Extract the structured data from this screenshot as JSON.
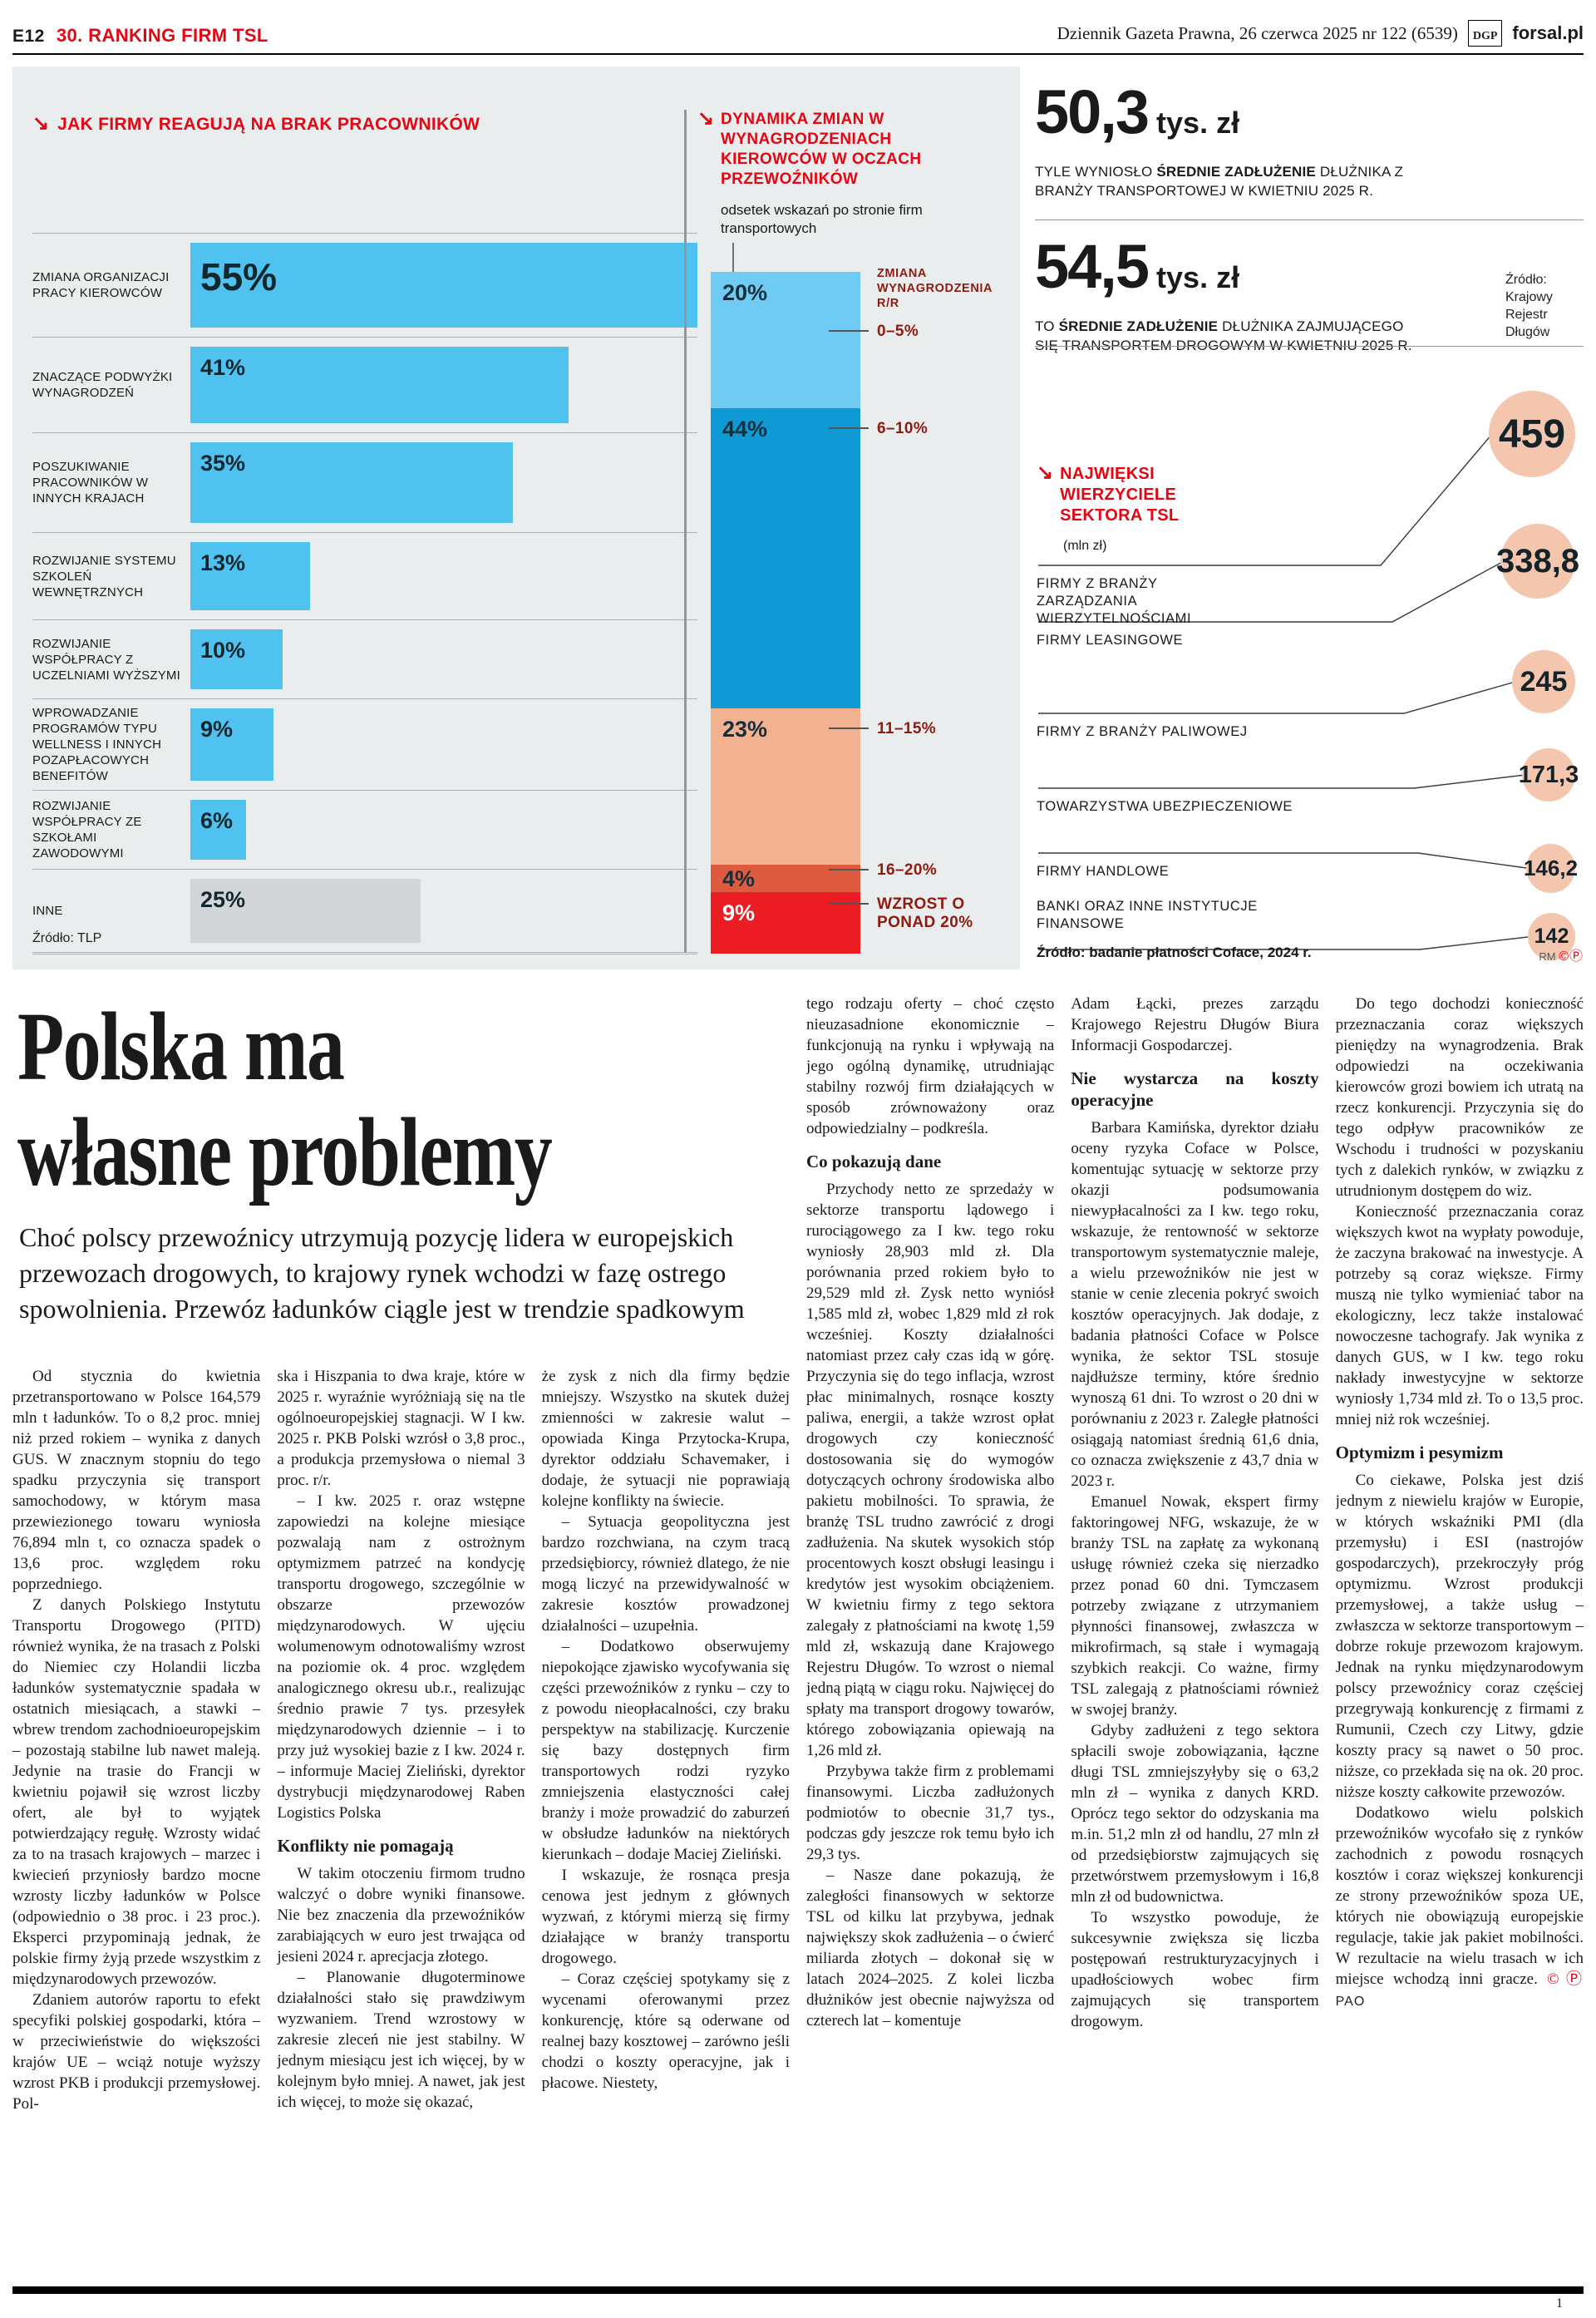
{
  "header": {
    "page_code": "E12",
    "section": "30. RANKING FIRM TSL",
    "issue": "Dziennik Gazeta Prawna, 26 czerwca 2025 nr 122 (6539)",
    "logo": "DGP",
    "site": "forsal.pl"
  },
  "chart_data": [
    {
      "type": "bar",
      "title": "JAK FIRMY REAGUJĄ NA BRAK PRACOWNIKÓW",
      "categories": [
        "ZMIANA ORGANIZACJI PRACY KIEROWCÓW",
        "ZNACZĄCE PODWYŻKI WYNAGRODZEŃ",
        "POSZUKIWANIE PRACOWNIKÓW W INNYCH KRAJACH",
        "ROZWIJANIE SYSTEMU SZKOLEŃ WEWNĘTRZNYCH",
        "ROZWIJANIE WSPÓŁPRACY Z UCZELNIAMI WYŻSZYMI",
        "WPROWADZANIE PROGRAMÓW TYPU WELLNESS I INNYCH POZAPŁACOWYCH BENEFITÓW",
        "ROZWIJANIE WSPÓŁPRACY ZE SZKOŁAMI ZAWODOWYMI",
        "INNE"
      ],
      "values": [
        55,
        41,
        35,
        13,
        10,
        9,
        6,
        25
      ],
      "unit": "%",
      "source": "Źródło: TLP",
      "layout": "horizontal-bars"
    },
    {
      "type": "bar",
      "title": "DYNAMIKA ZMIAN W WYNAGRODZENIACH KIEROWCÓW W OCZACH PRZEWOŹNIKÓW",
      "subtitle": "odsetek wskazań po stronie firm transportowych",
      "categories": [
        "0–5%",
        "6–10%",
        "11–15%",
        "16–20%",
        "WZROST O PONAD 20%"
      ],
      "values": [
        20,
        44,
        23,
        4,
        9
      ],
      "unit": "%",
      "axis_label": "ZMIANA WYNAGRODZENIA R/R",
      "layout": "stacked-column"
    },
    {
      "type": "bar",
      "title": "NAJWIĘKSI WIERZYCIELE SEKTORA TSL (mln zł)",
      "categories": [
        "FIRMY Z BRANŻY ZARZĄDZANIA WIERZYTELNOŚCIAMI",
        "FIRMY LEASINGOWE",
        "FIRMY Z BRANŻY PALIWOWEJ",
        "TOWARZYSTWA UBEZPIECZENIOWE",
        "FIRMY HANDLOWE",
        "BANKI ORAZ INNE INSTYTUCJE FINANSOWE"
      ],
      "values": [
        459,
        338.8,
        245,
        171.3,
        146.2,
        142
      ],
      "source": "Źródło: badanie płatności Coface, 2024 r.",
      "layout": "bubbles"
    }
  ],
  "infographic": {
    "reactions": {
      "title": "JAK FIRMY REAGUJĄ NA BRAK PRACOWNIKÓW",
      "source": "Źródło: TLP",
      "rows": [
        {
          "label": "ZMIANA ORGANIZACJI PRACY KIEROWCÓW",
          "value": 55
        },
        {
          "label": "ZNACZĄCE PODWYŻKI WYNAGRODZEŃ",
          "value": 41
        },
        {
          "label": "POSZUKIWANIE PRACOWNIKÓW W INNYCH KRAJACH",
          "value": 35
        },
        {
          "label": "ROZWIJANIE SYSTEMU SZKOLEŃ WEWNĘTRZNYCH",
          "value": 13
        },
        {
          "label": "ROZWIJANIE WSPÓŁPRACY Z UCZELNIAMI WYŻSZYMI",
          "value": 10
        },
        {
          "label": "WPROWADZANIE PROGRAMÓW TYPU WELLNESS I INNYCH POZAPŁACOWYCH BENEFITÓW",
          "value": 9
        },
        {
          "label": "ROZWIJANIE WSPÓŁPRACY ZE SZKOŁAMI ZAWODOWYMI",
          "value": 6
        },
        {
          "label": "INNE",
          "value": 25,
          "gray": true
        }
      ]
    },
    "salary": {
      "title": "DYNAMIKA ZMIAN W WYNAGRODZENIACH KIEROWCÓW W OCZACH PRZEWOŹNIKÓW",
      "subtitle": "odsetek wskazań po stronie firm transportowych",
      "axis_label": "ZMIANA WYNAGRODZENIA R/R",
      "segments": [
        {
          "value": 20,
          "range": "0–5%",
          "color": "#6fcbf3"
        },
        {
          "value": 44,
          "range": "6–10%",
          "color": "#0f9ad6"
        },
        {
          "value": 23,
          "range": "11–15%",
          "color": "#f2b191"
        },
        {
          "value": 4,
          "range": "16–20%",
          "color": "#df5b3f"
        },
        {
          "value": 9,
          "range": "WZROST O PONAD 20%",
          "color": "#ec1c24",
          "light": true
        }
      ]
    },
    "debt_stats": [
      {
        "value": "50,3",
        "unit": "tys. zł",
        "desc_pre": "TYLE WYNIOSŁO ",
        "desc_bold": "ŚREDNIE ZADŁUŻENIE",
        "desc_post": " DŁUŻNIKA Z BRANŻY TRANSPORTOWEJ W KWIETNIU 2025 R."
      },
      {
        "value": "54,5",
        "unit": "tys. zł",
        "desc_pre": "TO ",
        "desc_bold": "ŚREDNIE ZADŁUŻENIE",
        "desc_post": " DŁUŻNIKA ZAJMUJĄCEGO SIĘ TRANSPORTEM DROGOWYM W KWIETNIU 2025 R.",
        "source": "Źródło: Krajowy Rejestr Długów"
      }
    ],
    "creditors": {
      "title": "NAJWIĘKSI WIERZYCIELE SEKTORA TSL",
      "unit": "(mln zł)",
      "source": "Źródło: badanie płatności Coface, 2024 r.",
      "credit": "RM",
      "marks": "©Ⓟ",
      "items": [
        {
          "label": "FIRMY Z BRANŻY ZARZĄDZANIA WIERZYTELNOŚCIAMI",
          "value": "459",
          "num": 459
        },
        {
          "label": "FIRMY LEASINGOWE",
          "value": "338,8",
          "num": 338.8
        },
        {
          "label": "FIRMY Z BRANŻY PALIWOWEJ",
          "value": "245",
          "num": 245
        },
        {
          "label": "TOWARZYSTWA UBEZPIECZENIOWE",
          "value": "171,3",
          "num": 171.3
        },
        {
          "label": "FIRMY HANDLOWE",
          "value": "146,2",
          "num": 146.2
        },
        {
          "label": "BANKI ORAZ INNE INSTYTUCJE FINANSOWE",
          "value": "142",
          "num": 142
        }
      ]
    }
  },
  "article": {
    "headline_lines": [
      "Polska ma",
      "własne problemy"
    ],
    "lead": "Choć polscy przewoźnicy utrzymują pozycję lidera w europejskich przewozach drogowych, to krajowy rynek wchodzi w fazę ostrego spowolnienia. Przewóz ładunków ciągle jest w trendzie spadkowym",
    "end_marks": "©Ⓟ",
    "byline": "PAO",
    "columns": [
      [
        {
          "t": "p",
          "ind": true,
          "text": "Od stycznia do kwietnia przetransportowano w Polsce 164,579 mln t ładunków. To o 8,2 proc. mniej niż przed rokiem – wynika z danych GUS. W znacznym stopniu do tego spadku przyczynia się transport samochodowy, w którym masa przewiezionego towaru wyniosła 76,894 mln t, co oznacza spadek o 13,6 proc. względem roku poprzedniego."
        },
        {
          "t": "p",
          "ind": true,
          "text": "Z danych Polskiego Instytutu Transportu Drogowego (PITD) również wynika, że na trasach z Polski do Niemiec czy Holandii liczba ładunków systematycznie spadała w ostatnich miesiącach, a stawki – wbrew trendom zachodnioeuropejskim – pozostają stabilne lub nawet maleją. Jedynie na trasie do Francji w kwietniu pojawił się wzrost liczby ofert, ale był to wyjątek potwierdzający regułę. Wzrosty widać za to na trasach krajowych – marzec i kwiecień przyniosły bardzo mocne wzrosty liczby ładunków w Polsce (odpowiednio o 38 proc. i 23 proc.). Eksperci przypominają jednak, że polskie firmy żyją przede wszystkim z międzynarodowych przewozów."
        },
        {
          "t": "p",
          "ind": true,
          "text": "Zdaniem autorów raportu to efekt specyfiki polskiej gospodarki, która – w przeciwieństwie do większości krajów UE – wciąż notuje wyższy wzrost PKB i produkcji przemysłowej. Pol-"
        }
      ],
      [
        {
          "t": "p",
          "ind": false,
          "text": "ska i Hiszpania to dwa kraje, które w 2025 r. wyraźnie wyróżniają się na tle ogólnoeuropejskiej stagnacji. W I kw. 2025 r. PKB Polski wzrósł o 3,8 proc., a produkcja przemysłowa o niemal 3 proc. r/r."
        },
        {
          "t": "p",
          "ind": true,
          "text": "– I kw. 2025 r. oraz wstępne zapowiedzi na kolejne miesiące pozwalają nam z ostrożnym optymizmem patrzeć na kondycję transportu drogowego, szczególnie w obszarze przewozów międzynarodowych. W ujęciu wolumenowym odnotowaliśmy wzrost na poziomie ok. 4 proc. względem analogicznego okresu ub.r., realizując średnio prawie 7 tys. przesyłek międzynarodowych dziennie – i to przy już wysokiej bazie z I kw. 2024 r. – informuje Maciej Zieliński, dyrektor dystrybucji międzynarodowej Raben Logistics Polska"
        },
        {
          "t": "h",
          "text": "Konflikty nie pomagają"
        },
        {
          "t": "p",
          "ind": true,
          "text": "W takim otoczeniu firmom trudno walczyć o dobre wyniki finansowe. Nie bez znaczenia dla przewoźników zarabiających w euro jest trwająca od jesieni 2024 r. aprecjacja złotego."
        },
        {
          "t": "p",
          "ind": true,
          "text": "– Planowanie długoterminowe działalności stało się prawdziwym wyzwaniem. Trend wzrostowy w zakresie zleceń nie jest stabilny. W jednym miesiącu jest ich więcej, by w kolejnym było mniej. A nawet, jak jest ich więcej, to może się okazać,"
        }
      ],
      [
        {
          "t": "p",
          "ind": false,
          "text": "że zysk z nich dla firmy będzie mniejszy. Wszystko na skutek dużej zmienności w zakresie walut – opowiada Kinga Przytocka-Krupa, dyrektor oddziału Schavemaker, i dodaje, że sytuacji nie poprawiają kolejne konflikty na świecie."
        },
        {
          "t": "p",
          "ind": true,
          "text": "– Sytuacja geopolityczna jest bardzo rozchwiana, na czym tracą przedsiębiorcy, również dlatego, że nie mogą liczyć na przewidywalność w zakresie kosztów prowadzonej działalności – uzupełnia."
        },
        {
          "t": "p",
          "ind": true,
          "text": "– Dodatkowo obserwujemy niepokojące zjawisko wycofywania się części przewoźników z rynku – czy to z powodu nieopłacalności, czy braku perspektyw na stabilizację. Kurczenie się bazy dostępnych firm transportowych rodzi ryzyko zmniejszenia elastyczności całej branży i może prowadzić do zaburzeń w obsłudze ładunków na niektórych kierunkach – dodaje Maciej Zieliński."
        },
        {
          "t": "p",
          "ind": true,
          "text": "I wskazuje, że rosnąca presja cenowa jest jednym z głównych wyzwań, z którymi mierzą się firmy działające w branży transportu drogowego."
        },
        {
          "t": "p",
          "ind": true,
          "text": "– Coraz częściej spotykamy się z wycenami oferowanymi przez konkurencję, które są oderwane od realnej bazy kosztowej – zarówno jeśli chodzi o koszty operacyjne, jak i płacowe. Niestety,"
        }
      ],
      [
        {
          "t": "p",
          "ind": false,
          "text": "tego rodzaju oferty – choć często nieuzasadnione ekonomicznie – funkcjonują na rynku i wpływają na jego ogólną dynamikę, utrudniając stabilny rozwój firm działających w sposób zrównoważony oraz odpowiedzialny – podkreśla."
        },
        {
          "t": "h",
          "text": "Co pokazują dane"
        },
        {
          "t": "p",
          "ind": true,
          "text": "Przychody netto ze sprzedaży w sektorze transportu lądowego i rurociągowego za I kw. tego roku wyniosły 28,903 mld zł. Dla porównania przed rokiem było to 29,529 mld zł. Zysk netto wyniósł 1,585 mld zł, wobec 1,829 mld zł rok wcześniej. Koszty działalności natomiast przez cały czas idą w górę. Przyczynia się do tego inflacja, wzrost płac minimalnych, rosnące koszty paliwa, energii, a także wzrost opłat drogowych czy konieczność dostosowania się do wymogów dotyczących ochrony środowiska albo pakietu mobilności. To sprawia, że branżę TSL trudno zawrócić z drogi zadłużenia. Na skutek wysokich stóp procentowych koszt obsługi leasingu i kredytów jest wysokim obciążeniem. W kwietniu firmy z tego sektora zalegały z płatnościami na kwotę 1,59 mld zł, wskazują dane Krajowego Rejestru Długów. To wzrost o niemal jedną piątą w ciągu roku. Najwięcej do spłaty ma transport drogowy towarów, którego zobowiązania opiewają na 1,26 mld zł."
        },
        {
          "t": "p",
          "ind": true,
          "text": "Przybywa także firm z problemami finansowymi. Liczba zadłużonych podmiotów to obecnie 31,7 tys., podczas gdy jeszcze rok temu było ich 29,3 tys."
        },
        {
          "t": "p",
          "ind": true,
          "text": "– Nasze dane pokazują, że zaległości finansowych w sektorze TSL od kilku lat przybywa, jednak największy skok zadłużenia – o ćwierć miliarda złotych – dokonał się w latach 2024–2025. Z kolei liczba dłużników jest obecnie najwyższa od czterech lat – komentuje"
        }
      ],
      [
        {
          "t": "p",
          "ind": false,
          "text": "Adam Łącki, prezes zarządu Krajowego Rejestru Długów Biura Informacji Gospodarczej."
        },
        {
          "t": "h",
          "text": "Nie wystarcza na koszty operacyjne"
        },
        {
          "t": "p",
          "ind": true,
          "text": "Barbara Kamińska, dyrektor działu oceny ryzyka Coface w Polsce, komentując sytuację w sektorze przy okazji podsumowania niewypłacalności za I kw. tego roku, wskazuje, że rentowność w sektorze transportowym systematycznie maleje, a wielu przewoźników nie jest w stanie w cenie zlecenia pokryć swoich kosztów operacyjnych. Jak dodaje, z badania płatności Coface w Polsce wynika, że sektor TSL stosuje najdłuższe terminy, które średnio wynoszą 61 dni. To wzrost o 20 dni w porównaniu z 2023 r. Zaległe płatności osiągają natomiast średnią 61,6 dnia, co oznacza zwiększenie z 43,7 dnia w 2023 r."
        },
        {
          "t": "p",
          "ind": true,
          "text": "Emanuel Nowak, ekspert firmy faktoringowej NFG, wskazuje, że w branży TSL na zapłatę za wykonaną usługę również czeka się nierzadko przez ponad 60 dni. Tymczasem potrzeby związane z utrzymaniem płynności finansowej, zwłaszcza w mikrofirmach, są stałe i wymagają szybkich reakcji. Co ważne, firmy TSL zalegają z płatnościami również w swojej branży."
        },
        {
          "t": "p",
          "ind": true,
          "text": "Gdyby zadłużeni z tego sektora spłacili swoje zobowiązania, łączne długi TSL zmniejszyłyby się o 63,2 mln zł – wynika z danych KRD. Oprócz tego sektor do odzyskania ma m.in. 51,2 mln zł od handlu, 27 mln zł od przedsiębiorstw zajmujących się przetwórstwem przemysłowym i 16,8 mln zł od budownictwa."
        },
        {
          "t": "p",
          "ind": true,
          "text": "To wszystko powoduje, że sukcesywnie zwiększa się liczba postępowań restrukturyzacyjnych i upadłościowych wobec firm zajmujących się transportem drogowym."
        }
      ],
      [
        {
          "t": "p",
          "ind": true,
          "text": "Do tego dochodzi konieczność przeznaczania coraz większych pieniędzy na wynagrodzenia. Brak odpowiedzi na oczekiwania kierowców grozi bowiem ich utratą na rzecz konkurencji. Przyczynia się do tego odpływ pracowników ze Wschodu i trudności w pozyskaniu tych z dalekich rynków, w związku z utrudnionym dostępem do wiz."
        },
        {
          "t": "p",
          "ind": true,
          "text": "Konieczność przeznaczania coraz większych kwot na wypłaty powoduje, że zaczyna brakować na inwestycje. A potrzeby są coraz większe. Firmy muszą nie tylko wymieniać tabor na ekologiczny, lecz także instalować nowoczesne tachografy. Jak wynika z danych GUS, w I kw. tego roku nakłady inwestycyjne w sektorze wyniosły 1,734 mld zł. To o 13,5 proc. mniej niż rok wcześniej."
        },
        {
          "t": "h",
          "text": "Optymizm i pesymizm"
        },
        {
          "t": "p",
          "ind": true,
          "text": "Co ciekawe, Polska jest dziś jednym z niewielu krajów w Europie, w których wskaźniki PMI (dla przemysłu) i ESI (nastrojów gospodarczych), przekroczyły próg optymizmu. Wzrost produkcji przemysłowej, a także usług – zwłaszcza w sektorze transportowym – dobrze rokuje przewozom krajowym. Jednak na rynku międzynarodowym polscy przewoźnicy coraz częściej przegrywają konkurencję z firmami z Rumunii, Czech czy Litwy, gdzie koszty pracy są nawet o 50 proc. niższe, co przekłada się na ok. 20 proc. niższe koszty całkowite przewozów."
        },
        {
          "t": "p",
          "ind": true,
          "end": true,
          "text": "Dodatkowo wielu polskich przewoźników wycofało się z rynków zachodnich z powodu rosnących kosztów i coraz większej konkurencji ze strony przewoźników spoza UE, których nie obowiązują europejskie regulacje, takie jak pakiet mobilności. W rezultacie na wielu trasach w ich miejsce wchodzą inni gracze."
        }
      ]
    ]
  },
  "footer": {
    "page_number": "1"
  }
}
